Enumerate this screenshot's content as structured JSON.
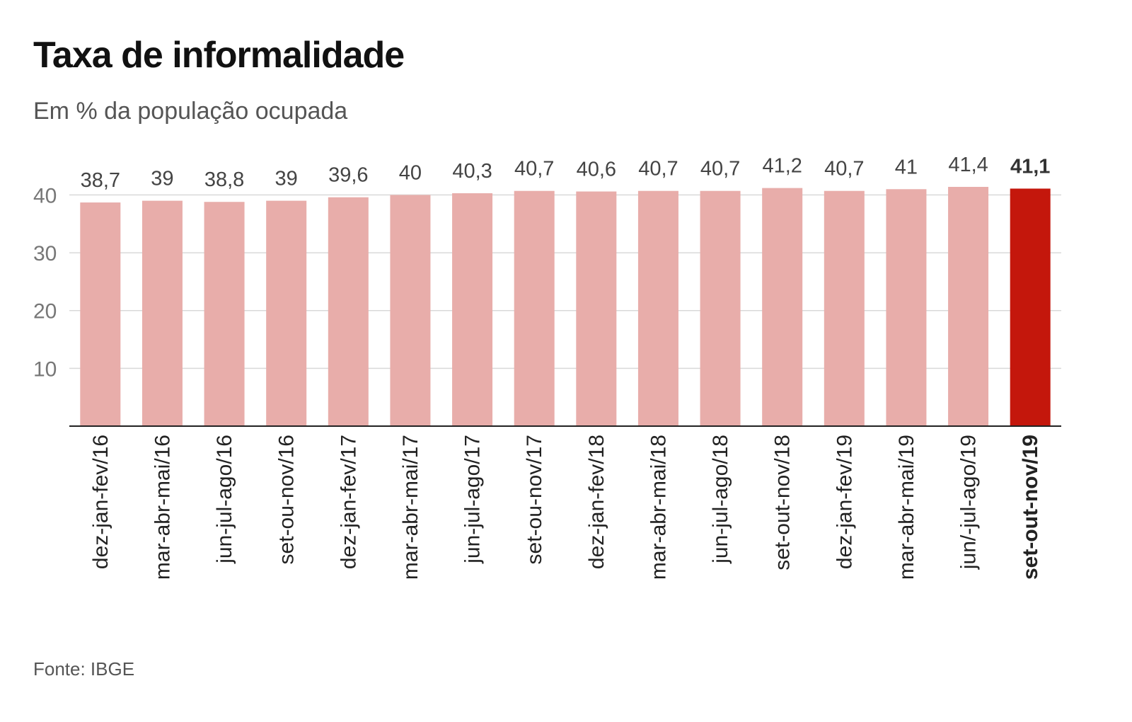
{
  "header": {
    "title": "Taxa de informalidade",
    "subtitle": "Em % da população ocupada"
  },
  "footer": {
    "source": "Fonte: IBGE"
  },
  "colors": {
    "bar": "#e8adaa",
    "highlight_bar": "#c4170c"
  },
  "chart_data": {
    "type": "bar",
    "title": "Taxa de informalidade",
    "subtitle": "Em % da população ocupada",
    "xlabel": "",
    "ylabel": "",
    "ylim": [
      0,
      41.4
    ],
    "yticks": [
      10,
      20,
      30,
      40
    ],
    "grid": true,
    "categories": [
      "dez-jan-fev/16",
      "mar-abr-mai/16",
      "jun-jul-ago/16",
      "set-ou-nov/16",
      "dez-jan-fev/17",
      "mar-abr-mai/17",
      "jun-jul-ago/17",
      "set-ou-nov/17",
      "dez-jan-fev/18",
      "mar-abr-mai/18",
      "jun-jul-ago/18",
      "set-out-nov/18",
      "dez-jan-fev/19",
      "mar-abr-mai/19",
      "jun/-jul-ago/19",
      "set-out-nov/19"
    ],
    "values": [
      38.7,
      39,
      38.8,
      39,
      39.6,
      40,
      40.3,
      40.7,
      40.6,
      40.7,
      40.7,
      41.2,
      40.7,
      41,
      41.4,
      41.1
    ],
    "value_labels": [
      "38,7",
      "39",
      "38,8",
      "39",
      "39,6",
      "40",
      "40,3",
      "40,7",
      "40,6",
      "40,7",
      "40,7",
      "41,2",
      "40,7",
      "41",
      "41,4",
      "41,1"
    ],
    "highlight_index": 15
  }
}
